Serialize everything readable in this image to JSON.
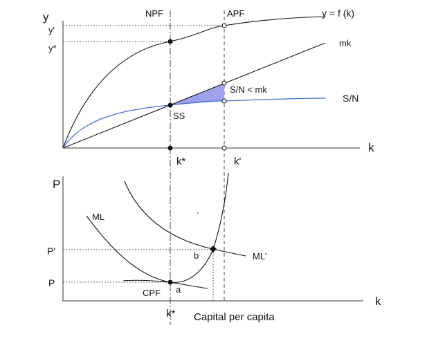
{
  "top_panel": {
    "y_axis": "y",
    "y_prime": "y'",
    "y_star": "y*",
    "npf": "NPF",
    "apf": "APF",
    "production_curve": "y = f (k)",
    "mk_line": "mk",
    "gap_label": "S/N < mk",
    "savings_curve": "S/N",
    "steady_state": "SS",
    "x_axis": "k",
    "k_star": "k*",
    "k_prime": "k'"
  },
  "bottom_panel": {
    "y_axis": "P",
    "p_prime": "P'",
    "p": "P",
    "ml": "ML",
    "ml_prime": "ML'",
    "point_b": "b",
    "point_a": "a",
    "cpf": "CPF",
    "x_axis": "k",
    "k_star": "k*",
    "caption": "Capital per capita"
  }
}
